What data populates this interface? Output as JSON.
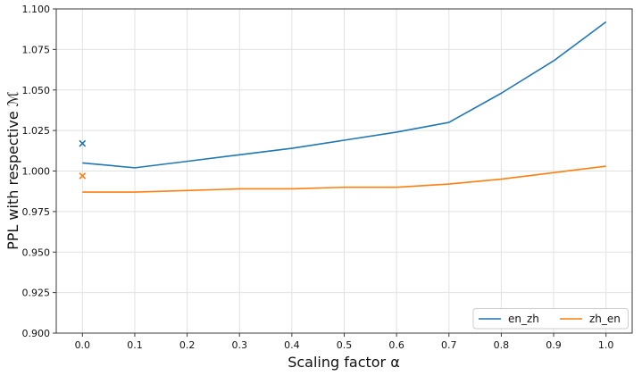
{
  "chart_data": {
    "type": "line",
    "title": "",
    "xlabel": "Scaling factor α",
    "ylabel": "PPL with respective ℳ",
    "x": [
      0.0,
      0.1,
      0.2,
      0.3,
      0.4,
      0.5,
      0.6,
      0.7,
      0.8,
      0.9,
      1.0
    ],
    "series": [
      {
        "name": "en_zh",
        "color": "#1f77b4",
        "values": [
          1.005,
          1.002,
          1.006,
          1.01,
          1.014,
          1.019,
          1.024,
          1.03,
          1.048,
          1.068,
          1.092
        ]
      },
      {
        "name": "zh_en",
        "color": "#ff7f0e",
        "values": [
          0.987,
          0.987,
          0.988,
          0.989,
          0.989,
          0.99,
          0.99,
          0.992,
          0.995,
          0.999,
          1.003
        ]
      }
    ],
    "scatter_points": [
      {
        "series": "en_zh",
        "x": 0.0,
        "y": 1.017,
        "marker": "x",
        "color": "#1f77b4"
      },
      {
        "series": "zh_en",
        "x": 0.0,
        "y": 0.997,
        "marker": "x",
        "color": "#ff7f0e"
      }
    ],
    "xlim": [
      -0.05,
      1.05
    ],
    "ylim": [
      0.9,
      1.1
    ],
    "xticks": [
      0.0,
      0.1,
      0.2,
      0.3,
      0.4,
      0.5,
      0.6,
      0.7,
      0.8,
      0.9,
      1.0
    ],
    "yticks": [
      0.9,
      0.925,
      0.95,
      0.975,
      1.0,
      1.025,
      1.05,
      1.075,
      1.1
    ],
    "xtick_labels": [
      "0.0",
      "0.1",
      "0.2",
      "0.3",
      "0.4",
      "0.5",
      "0.6",
      "0.7",
      "0.8",
      "0.9",
      "1.0"
    ],
    "ytick_labels": [
      "0.900",
      "0.925",
      "0.950",
      "0.975",
      "1.000",
      "1.025",
      "1.050",
      "1.075",
      "1.100"
    ],
    "grid": true,
    "legend": {
      "position": "lower-right",
      "entries": [
        "en_zh",
        "zh_en"
      ]
    }
  },
  "style": {
    "grid_color": "#e2e2e2",
    "spine_color": "#3a3a3a",
    "tick_color": "#3a3a3a",
    "text_color": "#111111",
    "legend_border": "#cccccc",
    "legend_fill": "#ffffff",
    "background": "#ffffff"
  }
}
